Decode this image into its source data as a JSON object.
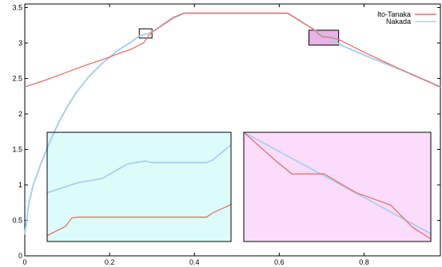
{
  "chart_data": {
    "type": "line",
    "title": "",
    "xlabel": "",
    "ylabel": "",
    "xlim": [
      0,
      0.98
    ],
    "ylim": [
      0,
      3.55
    ],
    "x_ticks": [
      0,
      0.2,
      0.4,
      0.6,
      0.8
    ],
    "x_tick_labels": [
      "0",
      "0.2",
      "0.4",
      "0.6",
      "0.8"
    ],
    "y_ticks": [
      0,
      0.5,
      1,
      1.5,
      2,
      2.5,
      3,
      3.5
    ],
    "y_tick_labels": [
      "0",
      "0.5",
      "1",
      "1.5",
      "2",
      "2.5",
      "3",
      "3.5"
    ],
    "grid": false,
    "legend_position": "top-right",
    "colors": {
      "ito_tanaka": "#e8706a",
      "nakada": "#a8d0f0",
      "inset_left_bg": "#dcfcfa",
      "inset_right_bg": "#fbdcfb",
      "zoom_box_right_fill": "#e6b4e6"
    },
    "series": [
      {
        "name": "Ito-Tanaka",
        "x": [
          0,
          0.05,
          0.1,
          0.15,
          0.2,
          0.22,
          0.25,
          0.28,
          0.29,
          0.3,
          0.33,
          0.35,
          0.375,
          0.62,
          0.66,
          0.68,
          0.7,
          0.72,
          0.74,
          0.76,
          0.8,
          0.85,
          0.9,
          0.95,
          0.98
        ],
        "values": [
          2.38,
          2.48,
          2.59,
          2.7,
          2.8,
          2.85,
          2.91,
          3.0,
          3.09,
          3.15,
          3.28,
          3.36,
          3.42,
          3.42,
          3.27,
          3.2,
          3.09,
          3.08,
          3.05,
          2.99,
          2.87,
          2.73,
          2.59,
          2.46,
          2.38
        ]
      },
      {
        "name": "Nakada",
        "x": [
          0,
          0.01,
          0.02,
          0.04,
          0.06,
          0.08,
          0.1,
          0.12,
          0.15,
          0.18,
          0.2,
          0.22,
          0.25,
          0.27,
          0.29,
          0.31,
          0.33,
          0.35,
          0.375,
          0.62,
          0.66,
          0.7,
          0.75,
          0.8,
          0.85,
          0.9,
          0.95,
          0.98
        ],
        "values": [
          0.3,
          0.75,
          1.0,
          1.33,
          1.62,
          1.88,
          2.1,
          2.29,
          2.52,
          2.7,
          2.8,
          2.9,
          3.01,
          3.1,
          3.13,
          3.19,
          3.27,
          3.35,
          3.42,
          3.42,
          3.27,
          3.12,
          2.96,
          2.83,
          2.71,
          2.59,
          2.46,
          2.38
        ]
      }
    ],
    "insets": [
      {
        "zoom_range": {
          "x": [
            0.27,
            0.3
          ],
          "y": [
            3.07,
            3.2
          ]
        },
        "series": [
          {
            "name": "Nakada",
            "x": [
              0.27,
              0.275,
              0.279,
              0.283,
              0.286,
              0.287,
              0.296,
              0.297,
              0.3
            ],
            "values": [
              3.128,
              3.14,
              3.145,
              3.162,
              3.166,
              3.164,
              3.164,
              3.167,
              3.185
            ]
          },
          {
            "name": "Ito-Tanaka",
            "x": [
              0.27,
              0.273,
              0.274,
              0.275,
              0.296,
              0.297,
              0.3
            ],
            "values": [
              3.077,
              3.088,
              3.098,
              3.099,
              3.099,
              3.104,
              3.114
            ]
          }
        ]
      },
      {
        "zoom_range": {
          "x": [
            0.67,
            0.74
          ],
          "y": [
            2.97,
            3.18
          ]
        },
        "series": [
          {
            "name": "Nakada",
            "x": [
              0.67,
              0.74
            ],
            "values": [
              3.18,
              2.985
            ]
          },
          {
            "name": "Ito-Tanaka",
            "x": [
              0.67,
              0.682,
              0.688,
              0.7,
              0.712,
              0.725,
              0.733,
              0.74
            ],
            "values": [
              3.18,
              3.125,
              3.1,
              3.1,
              3.064,
              3.04,
              2.998,
              2.975
            ]
          }
        ]
      }
    ]
  }
}
